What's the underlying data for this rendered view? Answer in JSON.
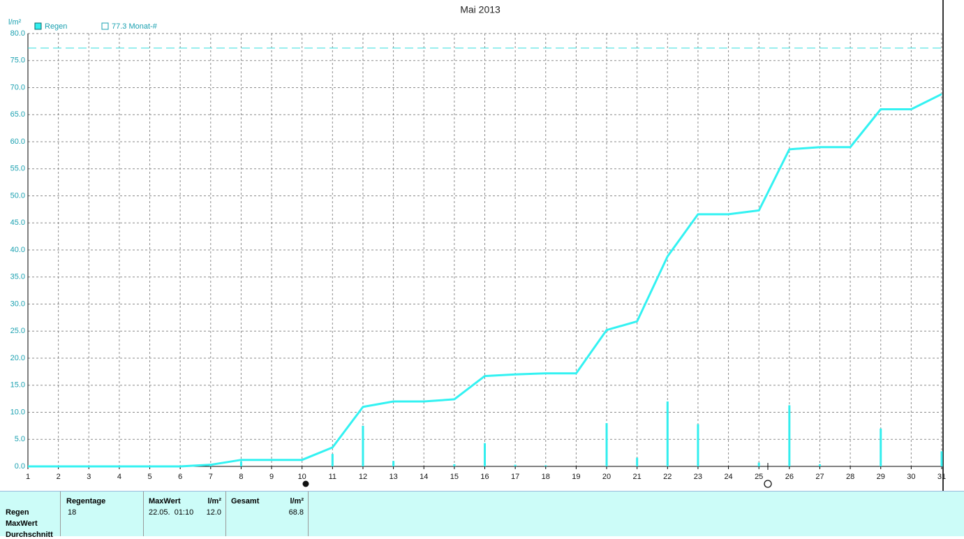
{
  "chart_data": {
    "type": "bar_line",
    "title": "Mai 2013",
    "y_label": "l/m²",
    "x": [
      1,
      2,
      3,
      4,
      5,
      6,
      7,
      8,
      9,
      10,
      11,
      12,
      13,
      14,
      15,
      16,
      17,
      18,
      19,
      20,
      21,
      22,
      23,
      24,
      25,
      26,
      27,
      28,
      29,
      30,
      31
    ],
    "series": [
      {
        "name": "Regen",
        "color": "#33eeee",
        "kind": "bar",
        "values": [
          0,
          0,
          0,
          0,
          0,
          0,
          0.3,
          0.9,
          0,
          0,
          2.3,
          7.5,
          1.0,
          0,
          0.4,
          4.3,
          0.3,
          0.2,
          0,
          8.0,
          1.6,
          12.0,
          7.8,
          0,
          0.7,
          11.3,
          0.4,
          0,
          7.0,
          0,
          2.8
        ]
      },
      {
        "color": "#33f2f2",
        "kind": "line",
        "values": [
          0,
          0,
          0,
          0,
          0,
          0,
          0.3,
          1.2,
          1.2,
          1.2,
          3.5,
          11.0,
          12.0,
          12.0,
          12.4,
          16.7,
          17.0,
          17.2,
          17.2,
          25.2,
          26.8,
          38.8,
          46.6,
          46.6,
          47.3,
          58.6,
          59.0,
          59.0,
          66.0,
          66.0,
          68.8
        ]
      }
    ],
    "reference_line": {
      "label": "77.3 Monat-#",
      "value": 77.3,
      "color": "#33dddd"
    },
    "xlim": [
      1,
      31
    ],
    "xticks": [
      1,
      2,
      3,
      4,
      5,
      6,
      7,
      8,
      9,
      10,
      11,
      12,
      13,
      14,
      15,
      16,
      17,
      18,
      19,
      20,
      21,
      22,
      23,
      24,
      25,
      26,
      27,
      28,
      29,
      30,
      31
    ],
    "ylim": [
      0,
      80
    ],
    "yticks": [
      {
        "value": 0,
        "label": "0.0"
      },
      {
        "value": 5,
        "label": "5.0"
      },
      {
        "value": 10,
        "label": "10.0"
      },
      {
        "value": 15,
        "label": "15.0"
      },
      {
        "value": 20,
        "label": "20.0"
      },
      {
        "value": 25,
        "label": "25.0"
      },
      {
        "value": 30,
        "label": "30.0"
      },
      {
        "value": 35,
        "label": "35.0"
      },
      {
        "value": 40,
        "label": "40.0"
      },
      {
        "value": 45,
        "label": "45.0"
      },
      {
        "value": 50,
        "label": "50.0"
      },
      {
        "value": 55,
        "label": "55.0"
      },
      {
        "value": 60,
        "label": "60.0"
      },
      {
        "value": 65,
        "label": "65.0"
      },
      {
        "value": 70,
        "label": "70.0"
      },
      {
        "value": 75,
        "label": "75.0"
      },
      {
        "value": 80,
        "label": "80.0"
      }
    ],
    "grid": true
  },
  "summary": {
    "row_labels": [
      "Regen",
      "MaxWert",
      "Durchschnitt"
    ],
    "headers": [
      "Regentage",
      "MaxWert",
      "l/m²",
      "Gesamt",
      "l/m²"
    ],
    "values": [
      "18",
      "22.05.  01:10",
      "12.0",
      "68.8"
    ]
  }
}
